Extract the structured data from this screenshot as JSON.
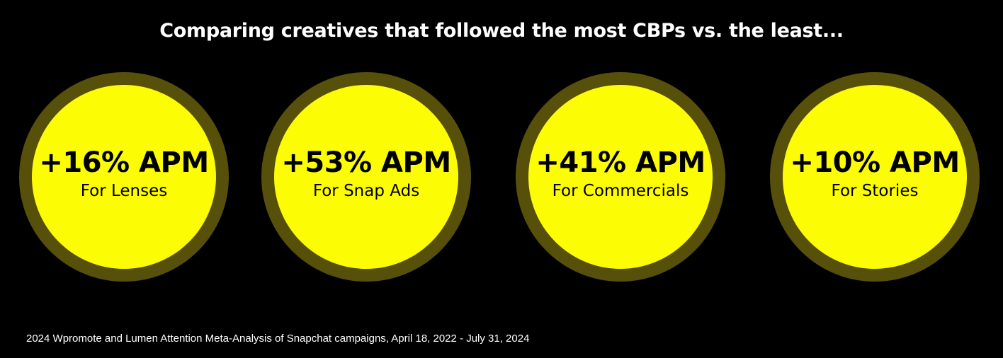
{
  "headline": "Comparing creatives that followed the most CBPs vs. the least...",
  "stats": [
    {
      "value": "+16% APM",
      "label": "For Lenses"
    },
    {
      "value": "+53% APM",
      "label": "For Snap Ads"
    },
    {
      "value": "+41% APM",
      "label": "For Commercials"
    },
    {
      "value": "+10% APM",
      "label": "For Stories"
    }
  ],
  "source_note": "2024 Wpromote and Lumen Attention Meta-Analysis of Snapchat campaigns, April 18, 2022 - July 31, 2024",
  "colors": {
    "background": "#000000",
    "circle_fill": "#fcfc05",
    "circle_ring": "#57500a",
    "text_light": "#ffffff",
    "text_dark": "#000000"
  }
}
